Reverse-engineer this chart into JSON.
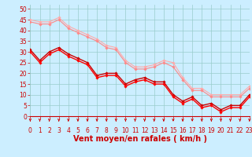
{
  "background_color": "#cceeff",
  "grid_color": "#99cccc",
  "xlabel": "Vent moyen/en rafales ( km/h )",
  "xlabel_color": "#cc0000",
  "xlabel_fontsize": 7,
  "yticks": [
    0,
    5,
    10,
    15,
    20,
    25,
    30,
    35,
    40,
    45,
    50
  ],
  "xticks": [
    0,
    1,
    2,
    3,
    4,
    5,
    6,
    7,
    8,
    9,
    10,
    11,
    12,
    13,
    14,
    15,
    16,
    17,
    18,
    19,
    20,
    21,
    22,
    23
  ],
  "ylim": [
    0,
    52
  ],
  "xlim": [
    0,
    23
  ],
  "tick_color": "#cc0000",
  "tick_fontsize": 5.5,
  "series": [
    {
      "x": [
        0,
        1,
        2,
        3,
        4,
        5,
        6,
        7,
        8,
        9,
        10,
        11,
        12,
        13,
        14,
        15,
        16,
        17,
        18,
        19,
        20,
        21,
        22,
        23
      ],
      "y": [
        45,
        44,
        44,
        46,
        42,
        40,
        38,
        36,
        33,
        32,
        26,
        23,
        23,
        24,
        26,
        25,
        18,
        13,
        13,
        10,
        10,
        10,
        10,
        14
      ],
      "color": "#ffaaaa",
      "lw": 0.8,
      "marker": "D",
      "ms": 1.8
    },
    {
      "x": [
        0,
        1,
        2,
        3,
        4,
        5,
        6,
        7,
        8,
        9,
        10,
        11,
        12,
        13,
        14,
        15,
        16,
        17,
        18,
        19,
        20,
        21,
        22,
        23
      ],
      "y": [
        44,
        43,
        43,
        45,
        41,
        39,
        37,
        35,
        32,
        31,
        25,
        22,
        22,
        23,
        25,
        23,
        17,
        12,
        12,
        9,
        9,
        9,
        9,
        13
      ],
      "color": "#ff8888",
      "lw": 0.8,
      "marker": "D",
      "ms": 1.8
    },
    {
      "x": [
        0,
        1,
        2,
        3,
        4,
        5,
        6,
        7,
        8,
        9,
        10,
        11,
        12,
        13,
        14,
        15,
        16,
        17,
        18,
        19,
        20,
        21,
        22,
        23
      ],
      "y": [
        31,
        26,
        30,
        32,
        29,
        27,
        25,
        19,
        20,
        20,
        15,
        17,
        18,
        16,
        16,
        10,
        7,
        9,
        5,
        6,
        3,
        5,
        5,
        10
      ],
      "color": "#cc0000",
      "lw": 1.0,
      "marker": "D",
      "ms": 1.8
    },
    {
      "x": [
        0,
        1,
        2,
        3,
        4,
        5,
        6,
        7,
        8,
        9,
        10,
        11,
        12,
        13,
        14,
        15,
        16,
        17,
        18,
        19,
        20,
        21,
        22,
        23
      ],
      "y": [
        30,
        25,
        29,
        31,
        28,
        26,
        24,
        18,
        19,
        19,
        14,
        16,
        17,
        15,
        15,
        9,
        6,
        8,
        4,
        5,
        2,
        4,
        4,
        9
      ],
      "color": "#ff0000",
      "lw": 1.0,
      "marker": "D",
      "ms": 1.8
    }
  ],
  "arrow_color": "#cc0000",
  "arrow_size": 4.0
}
